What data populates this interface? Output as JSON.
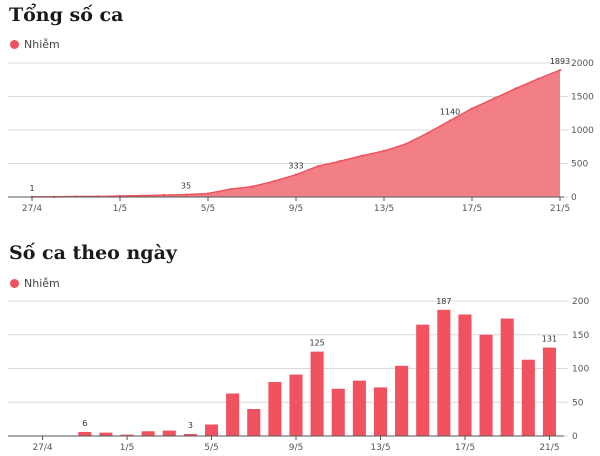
{
  "colors": {
    "accent": "#f0525f",
    "area_fill": "#f37f86",
    "grid": "#d9d9d9",
    "axis": "#555555"
  },
  "chart_data": [
    {
      "type": "area",
      "title": "Tổng số ca",
      "legend": "Nhiễm",
      "legend_position": "top-left",
      "grid": true,
      "ylim": [
        0,
        2000
      ],
      "yticks": [
        0,
        500,
        1000,
        1500,
        2000
      ],
      "xtick_labels": [
        "27/4",
        "1/5",
        "5/5",
        "9/5",
        "13/5",
        "17/5",
        "21/5"
      ],
      "x": [
        "27/4",
        "28/4",
        "29/4",
        "30/4",
        "1/5",
        "2/5",
        "3/5",
        "4/5",
        "5/5",
        "6/5",
        "7/5",
        "8/5",
        "9/5",
        "10/5",
        "11/5",
        "12/5",
        "13/5",
        "14/5",
        "15/5",
        "16/5",
        "17/5",
        "18/5",
        "19/5",
        "20/5",
        "21/5"
      ],
      "series": [
        {
          "name": "Nhiễm",
          "values": [
            1,
            1,
            7,
            8,
            15,
            20,
            28,
            35,
            52,
            115,
            155,
            236,
            333,
            460,
            534,
            616,
            688,
            792,
            956,
            1140,
            1320,
            1470,
            1620,
            1762,
            1893
          ]
        }
      ],
      "data_labels": [
        {
          "x": "27/4",
          "text": "1"
        },
        {
          "x": "4/5",
          "text": "35"
        },
        {
          "x": "9/5",
          "text": "333"
        },
        {
          "x": "16/5",
          "text": "1140"
        },
        {
          "x": "21/5",
          "text": "1893"
        }
      ]
    },
    {
      "type": "bar",
      "title": "Số ca theo ngày",
      "legend": "Nhiễm",
      "legend_position": "top-left",
      "grid": true,
      "ylim": [
        0,
        200
      ],
      "yticks": [
        0,
        50,
        100,
        150,
        200
      ],
      "xtick_labels": [
        "27/4",
        "1/5",
        "5/5",
        "9/5",
        "13/5",
        "17/5",
        "21/5"
      ],
      "x": [
        "27/4",
        "28/4",
        "29/4",
        "30/4",
        "1/5",
        "2/5",
        "3/5",
        "4/5",
        "5/5",
        "6/5",
        "7/5",
        "8/5",
        "9/5",
        "10/5",
        "11/5",
        "12/5",
        "13/5",
        "14/5",
        "15/5",
        "16/5",
        "17/5",
        "18/5",
        "19/5",
        "20/5",
        "21/5"
      ],
      "series": [
        {
          "name": "Nhiễm",
          "values": [
            0,
            0,
            6,
            5,
            2,
            7,
            8,
            3,
            17,
            63,
            40,
            80,
            91,
            125,
            70,
            82,
            72,
            104,
            165,
            187,
            180,
            150,
            174,
            113,
            131
          ]
        }
      ],
      "data_labels": [
        {
          "x": "29/4",
          "text": "6"
        },
        {
          "x": "4/5",
          "text": "3"
        },
        {
          "x": "10/5",
          "text": "125"
        },
        {
          "x": "16/5",
          "text": "187"
        },
        {
          "x": "21/5",
          "text": "131"
        }
      ]
    }
  ]
}
